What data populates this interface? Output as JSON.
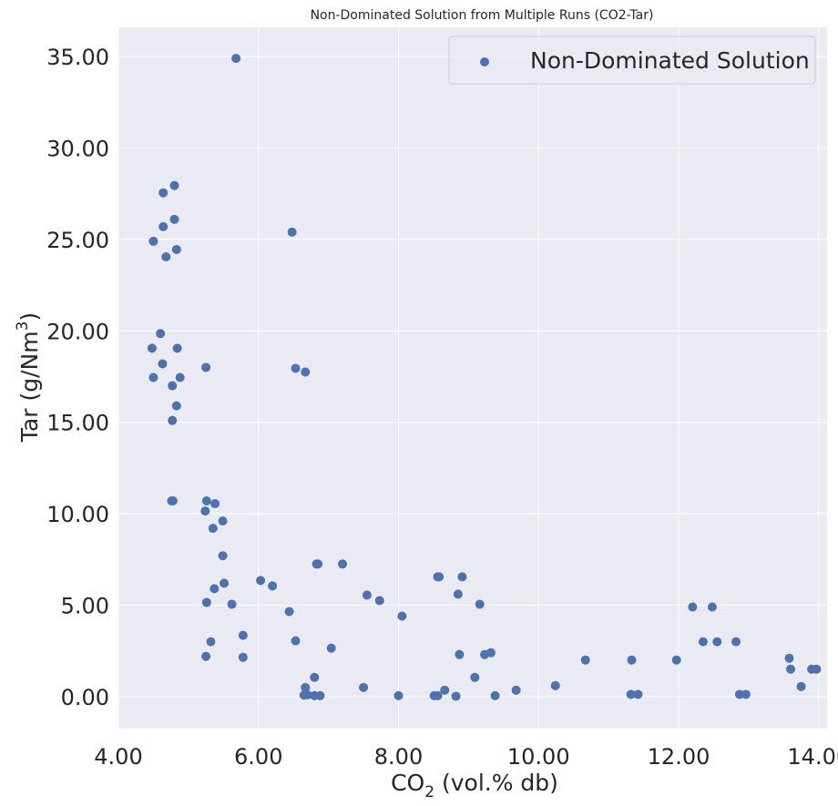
{
  "chart_data": {
    "type": "scatter",
    "title": "Non-Dominated Solution from Multiple Runs (CO2-Tar)",
    "xlabel": {
      "main": "CO",
      "sub": "2",
      "rest": " (vol.% db)"
    },
    "ylabel": {
      "main": "Tar (g/Nm",
      "sup": "3",
      "rest": ")"
    },
    "xlim": [
      4.0,
      14.12
    ],
    "ylim": [
      -1.75,
      36.6
    ],
    "xticks": [
      4.0,
      6.0,
      8.0,
      10.0,
      12.0,
      14.0
    ],
    "yticks": [
      0.0,
      5.0,
      10.0,
      15.0,
      20.0,
      25.0,
      30.0,
      35.0
    ],
    "xtick_labels": [
      "4.00",
      "6.00",
      "8.00",
      "10.00",
      "12.00",
      "14.00"
    ],
    "ytick_labels": [
      "0.00",
      "5.00",
      "10.00",
      "15.00",
      "20.00",
      "25.00",
      "30.00",
      "35.00"
    ],
    "grid": true,
    "legend_position": "top-right",
    "series": [
      {
        "name": "Non-Dominated Solution",
        "color": "#4c72b0",
        "points": [
          [
            5.68,
            34.9
          ],
          [
            4.8,
            27.95
          ],
          [
            4.64,
            27.55
          ],
          [
            4.8,
            26.1
          ],
          [
            4.64,
            25.7
          ],
          [
            4.5,
            24.9
          ],
          [
            4.83,
            24.45
          ],
          [
            4.68,
            24.05
          ],
          [
            6.48,
            25.4
          ],
          [
            4.6,
            19.85
          ],
          [
            4.48,
            19.05
          ],
          [
            4.84,
            19.05
          ],
          [
            4.63,
            18.2
          ],
          [
            5.25,
            18.0
          ],
          [
            4.5,
            17.45
          ],
          [
            4.88,
            17.45
          ],
          [
            4.77,
            17.0
          ],
          [
            4.83,
            15.9
          ],
          [
            4.77,
            15.1
          ],
          [
            6.53,
            17.95
          ],
          [
            6.67,
            17.75
          ],
          [
            4.76,
            10.7
          ],
          [
            4.78,
            10.7
          ],
          [
            5.26,
            10.7
          ],
          [
            5.38,
            10.55
          ],
          [
            5.24,
            10.15
          ],
          [
            5.49,
            9.6
          ],
          [
            5.35,
            9.2
          ],
          [
            5.49,
            7.7
          ],
          [
            5.51,
            6.2
          ],
          [
            5.37,
            5.9
          ],
          [
            5.26,
            5.15
          ],
          [
            5.62,
            5.05
          ],
          [
            5.78,
            3.35
          ],
          [
            5.32,
            3.0
          ],
          [
            5.25,
            2.2
          ],
          [
            5.78,
            2.15
          ],
          [
            6.03,
            6.35
          ],
          [
            6.2,
            6.05
          ],
          [
            6.83,
            7.25
          ],
          [
            6.85,
            7.25
          ],
          [
            7.2,
            7.25
          ],
          [
            6.44,
            4.65
          ],
          [
            6.53,
            3.05
          ],
          [
            7.04,
            2.65
          ],
          [
            6.67,
            0.5
          ],
          [
            6.8,
            1.05
          ],
          [
            6.65,
            0.08
          ],
          [
            6.7,
            0.1
          ],
          [
            6.8,
            0.05
          ],
          [
            6.88,
            0.05
          ],
          [
            7.55,
            5.55
          ],
          [
            7.73,
            5.25
          ],
          [
            8.05,
            4.4
          ],
          [
            7.5,
            0.5
          ],
          [
            8.0,
            0.05
          ],
          [
            8.56,
            6.55
          ],
          [
            8.58,
            6.55
          ],
          [
            8.91,
            6.55
          ],
          [
            8.85,
            5.6
          ],
          [
            9.16,
            5.05
          ],
          [
            8.87,
            2.3
          ],
          [
            9.23,
            2.3
          ],
          [
            9.32,
            2.4
          ],
          [
            9.09,
            1.05
          ],
          [
            8.66,
            0.35
          ],
          [
            8.51,
            0.05
          ],
          [
            8.56,
            0.05
          ],
          [
            8.82,
            0.02
          ],
          [
            9.38,
            0.05
          ],
          [
            9.68,
            0.35
          ],
          [
            10.24,
            0.6
          ],
          [
            10.67,
            2.0
          ],
          [
            11.33,
            2.0
          ],
          [
            11.97,
            2.0
          ],
          [
            11.32,
            0.12
          ],
          [
            11.42,
            0.12
          ],
          [
            12.2,
            4.9
          ],
          [
            12.48,
            4.9
          ],
          [
            12.35,
            3.0
          ],
          [
            12.55,
            3.0
          ],
          [
            12.82,
            3.0
          ],
          [
            12.87,
            0.12
          ],
          [
            12.96,
            0.12
          ],
          [
            13.58,
            2.1
          ],
          [
            13.6,
            1.5
          ],
          [
            13.75,
            0.55
          ],
          [
            13.9,
            1.5
          ],
          [
            13.97,
            1.5
          ]
        ]
      }
    ]
  }
}
